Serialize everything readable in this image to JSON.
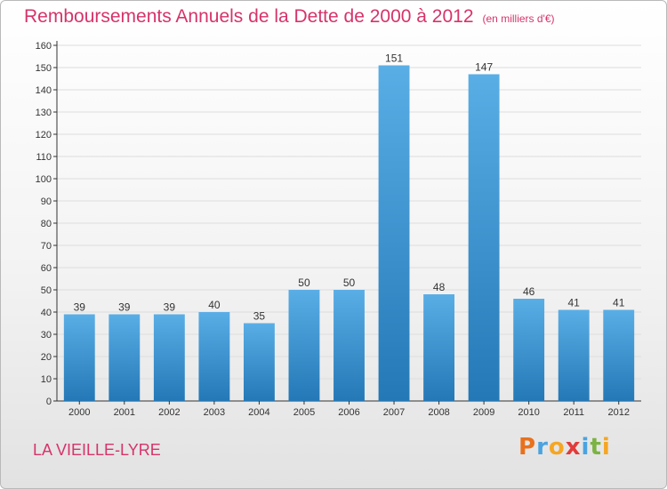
{
  "title": "Remboursements Annuels de la Dette de 2000 à 2012",
  "unit": "(en milliers d'€)",
  "commune": "LA VIEILLE-LYRE",
  "logo": {
    "letters": [
      "P",
      "r",
      "o",
      "x",
      "i",
      "t",
      "i"
    ],
    "colors": [
      "#e8711c",
      "#4aa3df",
      "#f5a623",
      "#e23b3b",
      "#4aa3df",
      "#7cb342",
      "#f5a623"
    ]
  },
  "colors": {
    "accent": "#d6336b",
    "bar_light": "#5aaee6",
    "bar_dark": "#2478b6",
    "axis": "#333333",
    "grid": "#dddddd"
  },
  "chart_data": {
    "type": "bar",
    "title": "Remboursements Annuels de la Dette de 2000 à 2012",
    "xlabel": "",
    "ylabel": "",
    "categories": [
      "2000",
      "2001",
      "2002",
      "2003",
      "2004",
      "2005",
      "2006",
      "2007",
      "2008",
      "2009",
      "2010",
      "2011",
      "2012"
    ],
    "values": [
      39,
      39,
      39,
      40,
      35,
      50,
      50,
      151,
      48,
      147,
      46,
      41,
      41
    ],
    "ylim": [
      0,
      160
    ],
    "yticks": [
      0,
      10,
      20,
      30,
      40,
      50,
      60,
      70,
      80,
      90,
      100,
      110,
      120,
      130,
      140,
      150,
      160
    ],
    "grid": true
  }
}
